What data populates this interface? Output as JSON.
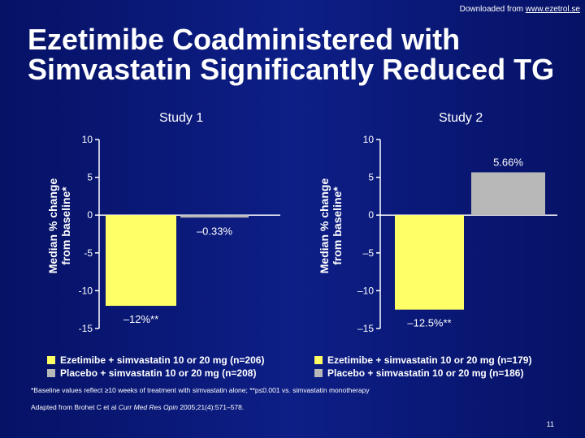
{
  "header": {
    "downloaded_prefix": "Downloaded from",
    "downloaded_url": "www.ezetrol.se"
  },
  "slide": {
    "title": "Ezetimibe Coadministered with Simvastatin Significantly Reduced TG",
    "footnote": "*Baseline values reflect ≥10 weeks of treatment with simvastatin alone; **p≤0.001 vs. simvastatin monotherapy",
    "citation_prefix": "Adapted from Brohet C et al ",
    "citation_journal": "Curr Med Res Opin",
    "citation_suffix": " 2005;21(4):571–578.",
    "page_number": "11"
  },
  "colors": {
    "background": "#0b1a78",
    "ezetimibe": "#ffff66",
    "placebo": "#b8b8b8",
    "axis": "#ffffff",
    "text": "#ffffff"
  },
  "chart_data": [
    {
      "type": "bar",
      "title": "Study 1",
      "ylabel_line1": "Median % change",
      "ylabel_line2": "from baseline*",
      "ylim": [
        -15,
        10
      ],
      "yticks": [
        10,
        5,
        0,
        -5,
        -10,
        -15
      ],
      "ytick_labels": [
        "10",
        "5",
        "0",
        "-5",
        "-10",
        "-15"
      ],
      "series": [
        {
          "name": "Ezetimibe + simvastatin 10 or 20 mg (n=206)",
          "value": -12,
          "label": "–12%**",
          "color": "#ffff66"
        },
        {
          "name": "Placebo + simvastatin 10 or 20 mg (n=208)",
          "value": -0.33,
          "label": "–0.33%",
          "color": "#b8b8b8"
        }
      ]
    },
    {
      "type": "bar",
      "title": "Study 2",
      "ylabel_line1": "Median % change",
      "ylabel_line2": "from baseline*",
      "ylim": [
        -15,
        10
      ],
      "yticks": [
        10,
        5,
        0,
        -5,
        -10,
        -15
      ],
      "ytick_labels": [
        "10",
        "5",
        "0",
        "–5",
        "–10",
        "–15"
      ],
      "series": [
        {
          "name": "Ezetimibe + simvastatin 10 or 20 mg (n=179)",
          "value": -12.5,
          "label": "–12.5%**",
          "color": "#ffff66"
        },
        {
          "name": "Placebo + simvastatin 10 or 20 mg (n=186)",
          "value": 5.66,
          "label": "5.66%",
          "color": "#b8b8b8"
        }
      ]
    }
  ]
}
